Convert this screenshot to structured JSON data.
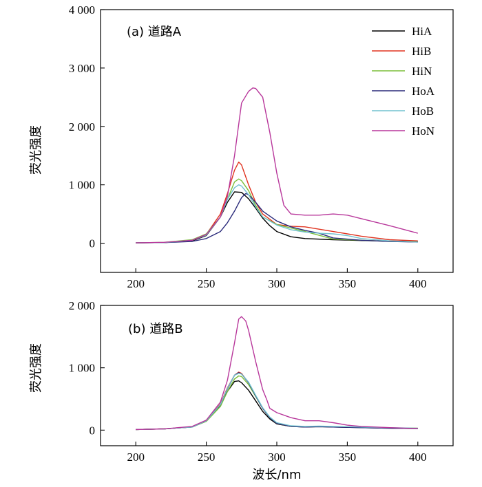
{
  "xlabel": "波长/nm",
  "ylabel": "荧光强度",
  "colors": {
    "HiA": "#000000",
    "HiB": "#e0321e",
    "HiN": "#7bbf3a",
    "HoA": "#2a2a7a",
    "HoB": "#72c2cf",
    "HoN": "#b8379b"
  },
  "chart_data": [
    {
      "type": "line",
      "panel_label": "(a) 道路A",
      "xlim": [
        175,
        425
      ],
      "ylim": [
        -500,
        4000
      ],
      "xticks": [
        200,
        250,
        300,
        350,
        400
      ],
      "xtick_labels": [
        "200",
        "250",
        "300",
        "350",
        "400"
      ],
      "yticks": [
        0,
        1000,
        2000,
        3000,
        4000
      ],
      "ytick_labels": [
        "0",
        "1 000",
        "2 000",
        "3 000",
        "4 000"
      ],
      "legend_position": "top-right",
      "series": [
        {
          "name": "HiA",
          "x": [
            200,
            220,
            240,
            250,
            260,
            265,
            270,
            275,
            280,
            285,
            290,
            295,
            300,
            310,
            320,
            340,
            360,
            380,
            400
          ],
          "y": [
            5,
            10,
            40,
            130,
            450,
            700,
            880,
            870,
            760,
            600,
            430,
            300,
            200,
            110,
            80,
            60,
            45,
            35,
            30
          ]
        },
        {
          "name": "HiB",
          "x": [
            200,
            220,
            240,
            250,
            260,
            265,
            270,
            273,
            275,
            280,
            285,
            290,
            300,
            310,
            320,
            330,
            340,
            360,
            380,
            400
          ],
          "y": [
            5,
            10,
            50,
            150,
            500,
            850,
            1250,
            1390,
            1340,
            1000,
            700,
            500,
            320,
            290,
            280,
            240,
            200,
            120,
            60,
            40
          ]
        },
        {
          "name": "HiN",
          "x": [
            200,
            220,
            240,
            250,
            260,
            265,
            270,
            273,
            275,
            280,
            285,
            290,
            300,
            310,
            320,
            340,
            360,
            380,
            400
          ],
          "y": [
            5,
            15,
            60,
            160,
            450,
            750,
            1050,
            1100,
            1070,
            900,
            650,
            450,
            320,
            260,
            200,
            70,
            50,
            30,
            25
          ]
        },
        {
          "name": "HoA",
          "x": [
            200,
            220,
            240,
            250,
            260,
            265,
            270,
            275,
            278,
            280,
            285,
            290,
            300,
            310,
            320,
            330,
            340,
            360,
            380,
            400
          ],
          "y": [
            5,
            10,
            30,
            80,
            200,
            350,
            550,
            780,
            850,
            830,
            700,
            550,
            380,
            280,
            220,
            170,
            90,
            50,
            30,
            20
          ]
        },
        {
          "name": "HoB",
          "x": [
            200,
            220,
            240,
            250,
            260,
            265,
            270,
            273,
            275,
            280,
            285,
            290,
            300,
            310,
            320,
            330,
            340,
            350,
            360,
            380,
            400
          ],
          "y": [
            5,
            10,
            50,
            140,
            450,
            750,
            950,
            1000,
            980,
            830,
            620,
            450,
            310,
            230,
            190,
            170,
            160,
            130,
            80,
            40,
            20
          ]
        },
        {
          "name": "HoN",
          "x": [
            200,
            220,
            240,
            250,
            260,
            265,
            270,
            275,
            280,
            283,
            285,
            290,
            295,
            300,
            305,
            310,
            320,
            330,
            340,
            350,
            360,
            380,
            400
          ],
          "y": [
            5,
            15,
            50,
            150,
            450,
            800,
            1500,
            2400,
            2600,
            2660,
            2650,
            2500,
            1900,
            1200,
            650,
            500,
            480,
            480,
            500,
            480,
            420,
            300,
            170
          ]
        }
      ]
    },
    {
      "type": "line",
      "panel_label": "(b) 道路B",
      "xlim": [
        175,
        425
      ],
      "ylim": [
        -250,
        2000
      ],
      "xticks": [
        200,
        250,
        300,
        350,
        400
      ],
      "xtick_labels": [
        "200",
        "250",
        "300",
        "350",
        "400"
      ],
      "yticks": [
        0,
        1000,
        2000
      ],
      "ytick_labels": [
        "0",
        "1 000",
        "2 000"
      ],
      "series": [
        {
          "name": "HiA",
          "x": [
            200,
            220,
            240,
            250,
            260,
            265,
            270,
            273,
            275,
            280,
            285,
            290,
            295,
            300,
            310,
            320,
            330,
            340,
            360,
            380,
            400
          ],
          "y": [
            10,
            20,
            50,
            150,
            400,
            620,
            780,
            790,
            760,
            640,
            470,
            300,
            180,
            100,
            60,
            50,
            55,
            50,
            40,
            30,
            25
          ]
        },
        {
          "name": "HiB",
          "x": [
            200,
            220,
            240,
            250,
            260,
            265,
            270,
            273,
            275,
            280,
            285,
            290,
            295,
            300,
            310,
            320,
            330,
            340,
            360,
            380,
            400
          ],
          "y": [
            10,
            20,
            50,
            150,
            420,
            680,
            880,
            930,
            910,
            760,
            550,
            350,
            200,
            110,
            60,
            55,
            60,
            55,
            45,
            35,
            30
          ]
        },
        {
          "name": "HiN",
          "x": [
            200,
            220,
            240,
            250,
            260,
            265,
            270,
            273,
            275,
            280,
            285,
            290,
            295,
            300,
            310,
            320,
            330,
            340,
            360,
            380,
            400
          ],
          "y": [
            10,
            20,
            50,
            140,
            380,
            620,
            820,
            870,
            860,
            730,
            540,
            350,
            200,
            110,
            60,
            55,
            60,
            55,
            45,
            35,
            30
          ]
        },
        {
          "name": "HoA",
          "x": [
            200,
            220,
            240,
            250,
            260,
            265,
            270,
            273,
            275,
            280,
            285,
            290,
            295,
            300,
            310,
            320,
            330,
            340,
            360,
            380,
            400
          ],
          "y": [
            10,
            20,
            50,
            150,
            410,
            660,
            880,
            920,
            900,
            760,
            550,
            350,
            200,
            110,
            60,
            50,
            55,
            50,
            40,
            30,
            25
          ]
        },
        {
          "name": "HoB",
          "x": [
            200,
            220,
            240,
            250,
            260,
            265,
            270,
            273,
            275,
            280,
            285,
            290,
            295,
            300,
            310,
            320,
            330,
            340,
            360,
            380,
            400
          ],
          "y": [
            10,
            20,
            50,
            150,
            410,
            670,
            880,
            910,
            900,
            770,
            560,
            360,
            210,
            120,
            70,
            60,
            65,
            60,
            50,
            40,
            30
          ]
        },
        {
          "name": "HoN",
          "x": [
            200,
            220,
            240,
            250,
            260,
            265,
            270,
            273,
            275,
            278,
            280,
            285,
            290,
            293,
            295,
            300,
            310,
            320,
            330,
            340,
            350,
            360,
            380,
            400
          ],
          "y": [
            10,
            20,
            60,
            160,
            450,
            800,
            1400,
            1780,
            1820,
            1750,
            1600,
            1100,
            650,
            480,
            350,
            280,
            200,
            150,
            150,
            120,
            80,
            60,
            40,
            25
          ]
        }
      ]
    }
  ]
}
